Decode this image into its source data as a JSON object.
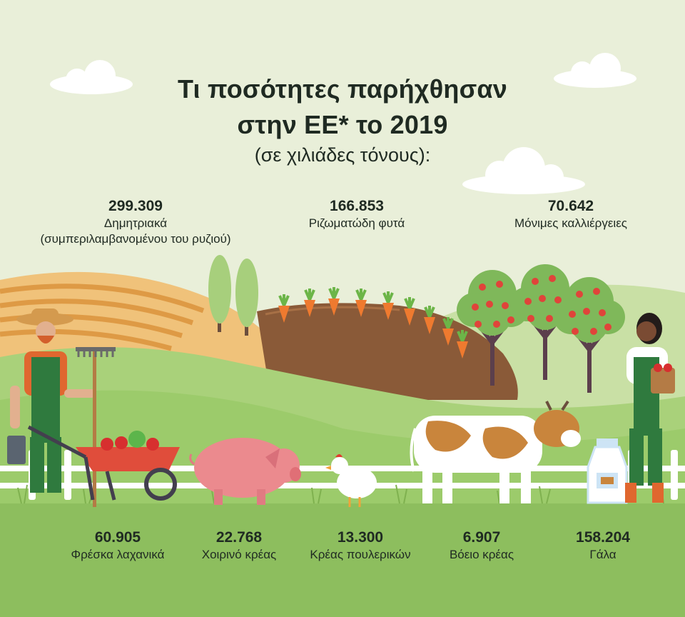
{
  "title_line1": "Τι ποσότητες παρήχθησαν",
  "title_line2": "στην ΕΕ* το 2019",
  "subtitle": "(σε χιλιάδες τόνους):",
  "top_stats": [
    {
      "value": "299.309",
      "label_line1": "Δημητριακά",
      "label_line2": "(συμπεριλαμβανομένου του ρυζιού)"
    },
    {
      "value": "166.853",
      "label_line1": "Ριζωματώδη φυτά"
    },
    {
      "value": "70.642",
      "label_line1": "Μόνιμες καλλιέργειες"
    }
  ],
  "bottom_stats": [
    {
      "value": "60.905",
      "label": "Φρέσκα λαχανικά"
    },
    {
      "value": "22.768",
      "label": "Χοιρινό κρέας"
    },
    {
      "value": "13.300",
      "label": "Κρέας πουλερικών"
    },
    {
      "value": "6.907",
      "label": "Βόειο κρέας"
    },
    {
      "value": "158.204",
      "label": "Γάλα"
    }
  ],
  "colors": {
    "background": "#e9efd9",
    "field_green": "#9fca6e",
    "ground_green": "#8dbe5e",
    "text": "#1f2a22"
  }
}
